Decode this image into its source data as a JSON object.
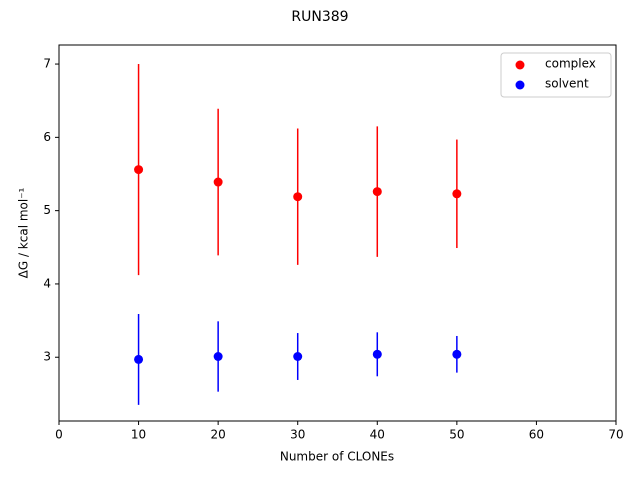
{
  "chart_data": {
    "type": "scatter",
    "title": "RUN389",
    "xlabel": "Number of CLONEs",
    "ylabel": "ΔG / kcal mol⁻¹",
    "x": [
      10,
      20,
      30,
      40,
      50
    ],
    "series": [
      {
        "name": "complex",
        "color": "#ff0000",
        "values": [
          5.56,
          5.39,
          5.19,
          5.26,
          5.23
        ],
        "errors": [
          1.44,
          1.0,
          0.93,
          0.89,
          0.74
        ]
      },
      {
        "name": "solvent",
        "color": "#0000ff",
        "values": [
          2.97,
          3.01,
          3.01,
          3.04,
          3.04
        ],
        "errors": [
          0.62,
          0.48,
          0.32,
          0.3,
          0.25
        ]
      }
    ],
    "xlim": [
      0,
      70
    ],
    "xticks": [
      0,
      10,
      20,
      30,
      40,
      50,
      60,
      70
    ],
    "ylim": [
      2.13,
      7.26
    ],
    "yticks": [
      3,
      4,
      5,
      6,
      7
    ],
    "legend": "upper right"
  }
}
